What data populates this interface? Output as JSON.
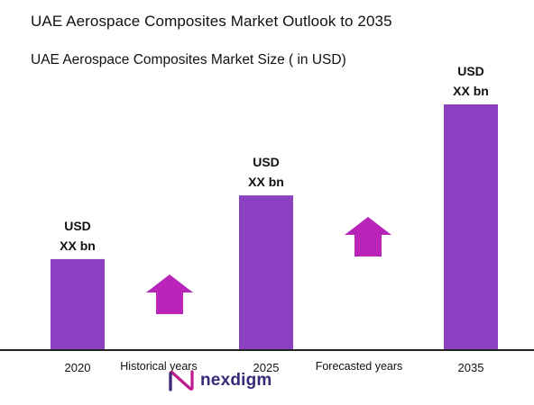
{
  "chart_data": {
    "type": "bar",
    "title": "UAE Aerospace Composites Market Outlook to 2035",
    "subtitle": "UAE Aerospace Composites Market Size ( in USD)",
    "categories": [
      "2020",
      "2025",
      "2035"
    ],
    "values": [
      1,
      1.7,
      2.7
    ],
    "value_labels": [
      [
        "USD",
        "XX bn"
      ],
      [
        "USD",
        "XX bn"
      ],
      [
        "USD",
        "XX bn"
      ]
    ],
    "period_labels": [
      "Historical years",
      "Forecasted years"
    ],
    "bar_color": "#8b3fc1",
    "arrow_color": "#b825b8",
    "axis_color": "#222222",
    "ylim": [
      0,
      2.7
    ],
    "grid": false,
    "legend": "none"
  },
  "brand": {
    "name": "nexdigm",
    "icon": "nexdigm-logo-icon",
    "color": "#3a2a78",
    "accent": "#c01b8c"
  }
}
